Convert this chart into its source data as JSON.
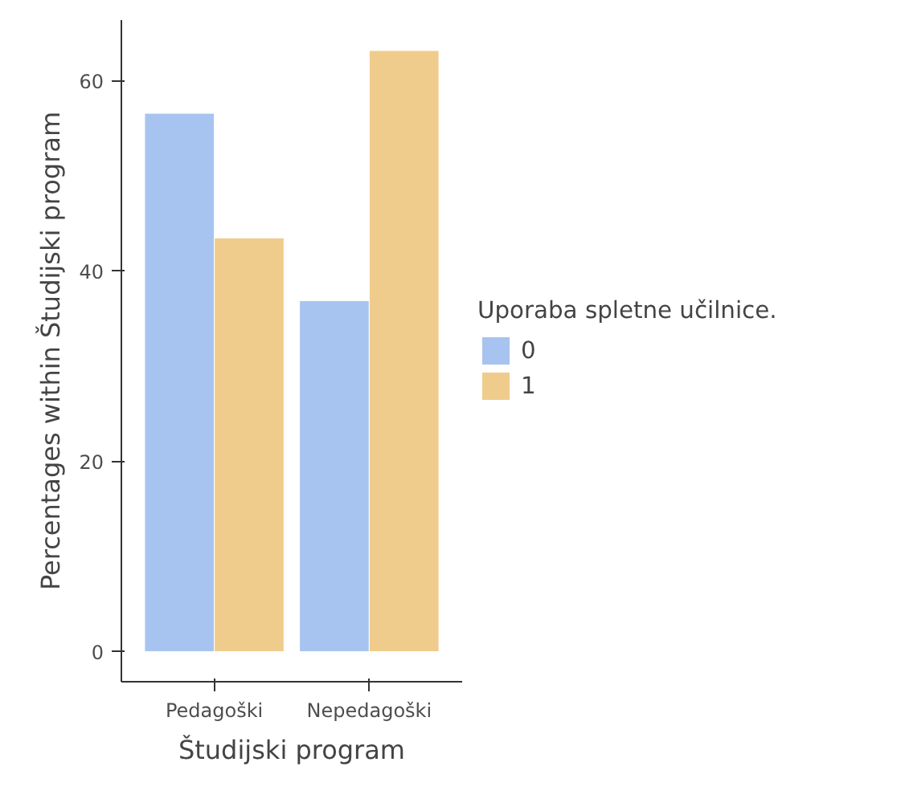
{
  "chart_data": {
    "type": "bar",
    "xlabel": "Študijski program",
    "ylabel": "Percentages within Študijski program",
    "legend_title": "Uporaba spletne učilnice.",
    "categories": [
      "Pedagoški",
      "Nepedagoški"
    ],
    "series": [
      {
        "name": "0",
        "color": "#a7c4f0",
        "values": [
          56.6,
          36.9
        ]
      },
      {
        "name": "1",
        "color": "#f0cc8c",
        "values": [
          43.5,
          63.2
        ]
      }
    ],
    "ylim": [
      -3.16,
      66.4
    ],
    "yticks": [
      0,
      20,
      40,
      60
    ],
    "legend": "right"
  }
}
